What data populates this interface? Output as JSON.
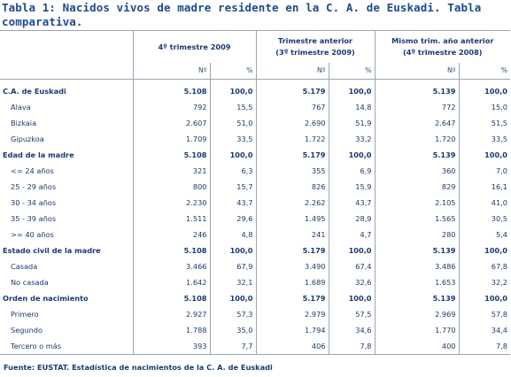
{
  "title": "Tabla 1: Nacidos vivos de madre residente en la C. A. de Euskadi. Tabla comparativa.",
  "headers": {
    "col1": "4º trimestre 2009",
    "col2_line1": "Trimestre anterior",
    "col2_line2": "(3º trimestre 2009)",
    "col3_line1": "Mismo trim. año anterior",
    "col3_line2": "(4º trimestre 2008)",
    "n": "Nº",
    "pct": "%"
  },
  "rows": [
    {
      "label": "C.A. de Euskadi",
      "v": [
        "5.108",
        "100,0",
        "5.179",
        "100,0",
        "5.139",
        "100,0"
      ]
    },
    {
      "label": "Alava",
      "v": [
        "792",
        "15,5",
        "767",
        "14,8",
        "772",
        "15,0"
      ]
    },
    {
      "label": "Bizkaia",
      "v": [
        "2.607",
        "51,0",
        "2.690",
        "51,9",
        "2.647",
        "51,5"
      ]
    },
    {
      "label": "Gipuzkoa",
      "v": [
        "1.709",
        "33,5",
        "1.722",
        "33,2",
        "1.720",
        "33,5"
      ]
    },
    {
      "label": "Edad de la madre",
      "v": [
        "5.108",
        "100,0",
        "5.179",
        "100,0",
        "5.139",
        "100,0"
      ]
    },
    {
      "label": "<= 24 años",
      "v": [
        "321",
        "6,3",
        "355",
        "6,9",
        "360",
        "7,0"
      ]
    },
    {
      "label": "25 - 29 años",
      "v": [
        "800",
        "15,7",
        "826",
        "15,9",
        "829",
        "16,1"
      ]
    },
    {
      "label": "30 - 34 años",
      "v": [
        "2.230",
        "43,7",
        "2.262",
        "43,7",
        "2.105",
        "41,0"
      ]
    },
    {
      "label": "35 - 39 años",
      "v": [
        "1.511",
        "29,6",
        "1.495",
        "28,9",
        "1.565",
        "30,5"
      ]
    },
    {
      "label": ">= 40 años",
      "v": [
        "246",
        "4,8",
        "241",
        "4,7",
        "280",
        "5,4"
      ]
    },
    {
      "label": "Estado civil de la madre",
      "v": [
        "5.108",
        "100,0",
        "5.179",
        "100,0",
        "5.139",
        "100,0"
      ]
    },
    {
      "label": "Casada",
      "v": [
        "3.466",
        "67,9",
        "3.490",
        "67,4",
        "3.486",
        "67,8"
      ]
    },
    {
      "label": "No casada",
      "v": [
        "1.642",
        "32,1",
        "1.689",
        "32,6",
        "1.653",
        "32,2"
      ]
    },
    {
      "label": "Orden de nacimiento",
      "v": [
        "5.108",
        "100,0",
        "5.179",
        "100,0",
        "5.139",
        "100,0"
      ]
    },
    {
      "label": "Primero",
      "v": [
        "2.927",
        "57,3",
        "2.979",
        "57,5",
        "2.969",
        "57,8"
      ]
    },
    {
      "label": "Segundo",
      "v": [
        "1.788",
        "35,0",
        "1.794",
        "34,6",
        "1.770",
        "34,4"
      ]
    },
    {
      "label": "Tercero o más",
      "v": [
        "393",
        "7,7",
        "406",
        "7,8",
        "400",
        "7,8"
      ]
    }
  ],
  "source": "Fuente: EUSTAT. Estadística de nacimientos de la C. A. de Euskadi"
}
